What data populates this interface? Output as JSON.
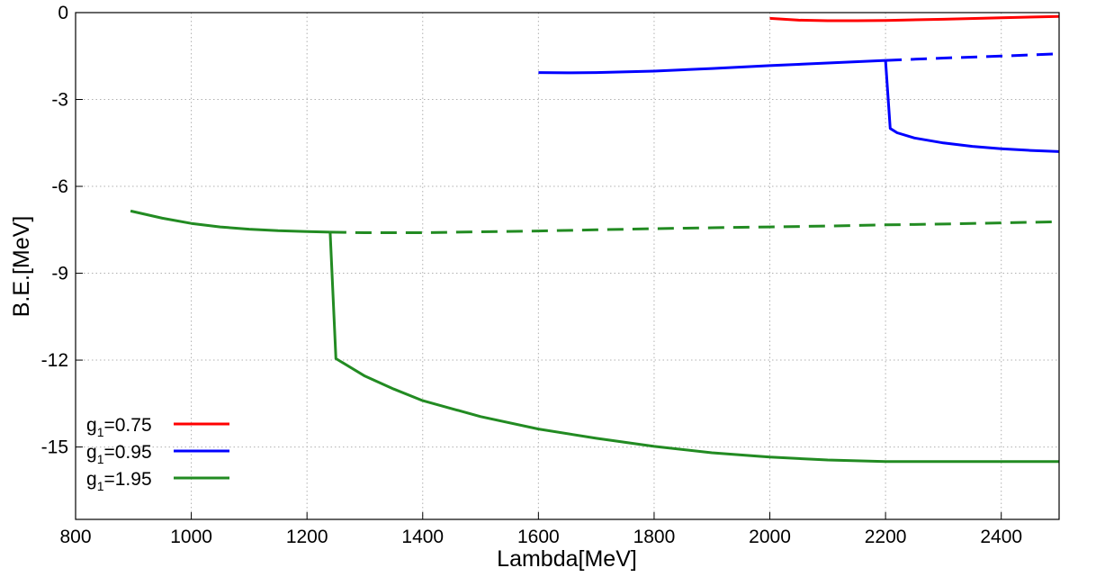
{
  "chart_data": {
    "type": "line",
    "xlabel": "Lambda[MeV]",
    "ylabel": "B.E.[MeV]",
    "xlim": [
      800,
      2500
    ],
    "ylim": [
      -17.5,
      0
    ],
    "xticks": [
      800,
      1000,
      1200,
      1400,
      1600,
      1800,
      2000,
      2200,
      2400
    ],
    "yticks": [
      0,
      -3,
      -6,
      -9,
      -12,
      -15
    ],
    "grid": true,
    "legend_position": "bottom-left",
    "series": [
      {
        "name": "g1=0.75",
        "legend_base": "g",
        "legend_sub": "1",
        "legend_rest": "=0.75",
        "color": "#ff0000",
        "segments": [
          {
            "style": "solid",
            "points": [
              [
                2000,
                -0.2
              ],
              [
                2050,
                -0.26
              ],
              [
                2100,
                -0.28
              ],
              [
                2150,
                -0.28
              ],
              [
                2200,
                -0.27
              ],
              [
                2300,
                -0.23
              ],
              [
                2400,
                -0.18
              ],
              [
                2500,
                -0.13
              ]
            ]
          }
        ]
      },
      {
        "name": "g1=0.95",
        "legend_base": "g",
        "legend_sub": "1",
        "legend_rest": "=0.95",
        "color": "#0000ff",
        "segments": [
          {
            "style": "solid",
            "points": [
              [
                1600,
                -2.07
              ],
              [
                1650,
                -2.08
              ],
              [
                1700,
                -2.07
              ],
              [
                1800,
                -2.02
              ],
              [
                1900,
                -1.93
              ],
              [
                2000,
                -1.83
              ],
              [
                2100,
                -1.74
              ],
              [
                2200,
                -1.65
              ]
            ]
          },
          {
            "style": "dashed",
            "points": [
              [
                2200,
                -1.65
              ],
              [
                2300,
                -1.57
              ],
              [
                2400,
                -1.5
              ],
              [
                2500,
                -1.42
              ]
            ]
          },
          {
            "style": "solid",
            "points": [
              [
                2200,
                -1.65
              ],
              [
                2208,
                -4.0
              ],
              [
                2220,
                -4.15
              ],
              [
                2250,
                -4.33
              ],
              [
                2300,
                -4.5
              ],
              [
                2350,
                -4.62
              ],
              [
                2400,
                -4.7
              ],
              [
                2450,
                -4.76
              ],
              [
                2500,
                -4.8
              ]
            ]
          }
        ]
      },
      {
        "name": "g1=1.95",
        "legend_base": "g",
        "legend_sub": "1",
        "legend_rest": "=1.95",
        "color": "#228b22",
        "segments": [
          {
            "style": "solid",
            "points": [
              [
                895,
                -6.85
              ],
              [
                950,
                -7.1
              ],
              [
                1000,
                -7.28
              ],
              [
                1050,
                -7.4
              ],
              [
                1100,
                -7.48
              ],
              [
                1150,
                -7.53
              ],
              [
                1200,
                -7.56
              ],
              [
                1240,
                -7.58
              ]
            ]
          },
          {
            "style": "dashed",
            "points": [
              [
                1240,
                -7.58
              ],
              [
                1300,
                -7.6
              ],
              [
                1400,
                -7.6
              ],
              [
                1500,
                -7.57
              ],
              [
                1600,
                -7.54
              ],
              [
                1700,
                -7.5
              ],
              [
                1800,
                -7.46
              ],
              [
                1900,
                -7.43
              ],
              [
                2000,
                -7.4
              ],
              [
                2100,
                -7.37
              ],
              [
                2200,
                -7.33
              ],
              [
                2300,
                -7.3
              ],
              [
                2400,
                -7.26
              ],
              [
                2500,
                -7.22
              ]
            ]
          },
          {
            "style": "solid",
            "points": [
              [
                1240,
                -7.58
              ],
              [
                1250,
                -11.95
              ],
              [
                1300,
                -12.55
              ],
              [
                1350,
                -13.0
              ],
              [
                1400,
                -13.4
              ],
              [
                1500,
                -13.95
              ],
              [
                1600,
                -14.38
              ],
              [
                1700,
                -14.7
              ],
              [
                1800,
                -14.98
              ],
              [
                1900,
                -15.2
              ],
              [
                2000,
                -15.35
              ],
              [
                2100,
                -15.45
              ],
              [
                2200,
                -15.5
              ],
              [
                2300,
                -15.5
              ],
              [
                2400,
                -15.5
              ],
              [
                2500,
                -15.5
              ]
            ]
          }
        ]
      }
    ]
  }
}
